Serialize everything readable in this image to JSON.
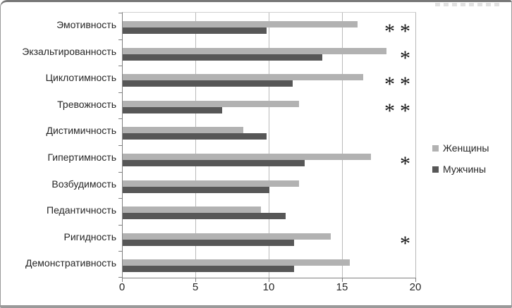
{
  "chart_data": {
    "type": "bar",
    "orientation": "horizontal",
    "title": "",
    "xlabel": "",
    "ylabel": "",
    "categories": [
      "Эмотивность",
      "Экзальтированность",
      "Циклотимность",
      "Тревожность",
      "Дистимичность",
      "Гипертимность",
      "Возбудимость",
      "Педантичность",
      "Ригидность",
      "Демонстративность"
    ],
    "series": [
      {
        "key": "women",
        "name": "Женщины",
        "color": "#b2b2b2",
        "values": [
          16.0,
          18.0,
          16.4,
          12.0,
          8.2,
          16.9,
          12.0,
          9.4,
          14.2,
          15.5
        ]
      },
      {
        "key": "men",
        "name": "Мужчины",
        "color": "#575757",
        "values": [
          9.8,
          13.6,
          11.6,
          6.8,
          9.8,
          12.4,
          10.0,
          11.1,
          11.7,
          11.7
        ]
      }
    ],
    "significance": [
      "**",
      "*",
      "**",
      "**",
      "",
      "*",
      "",
      "",
      "*",
      ""
    ],
    "x_ticks": [
      0,
      5,
      10,
      15,
      20
    ],
    "xlim": [
      0,
      20
    ],
    "grid": true,
    "legend_position": "right"
  },
  "legend": {
    "items": [
      {
        "key": "women",
        "label": "Женщины",
        "color": "#b2b2b2"
      },
      {
        "key": "men",
        "label": "Мужчины",
        "color": "#575757"
      }
    ]
  },
  "colors": {
    "gridline": "#b9b9b9",
    "axis": "#7f7f7f",
    "text": "#262626",
    "frame_border": "#9a9a9a"
  }
}
